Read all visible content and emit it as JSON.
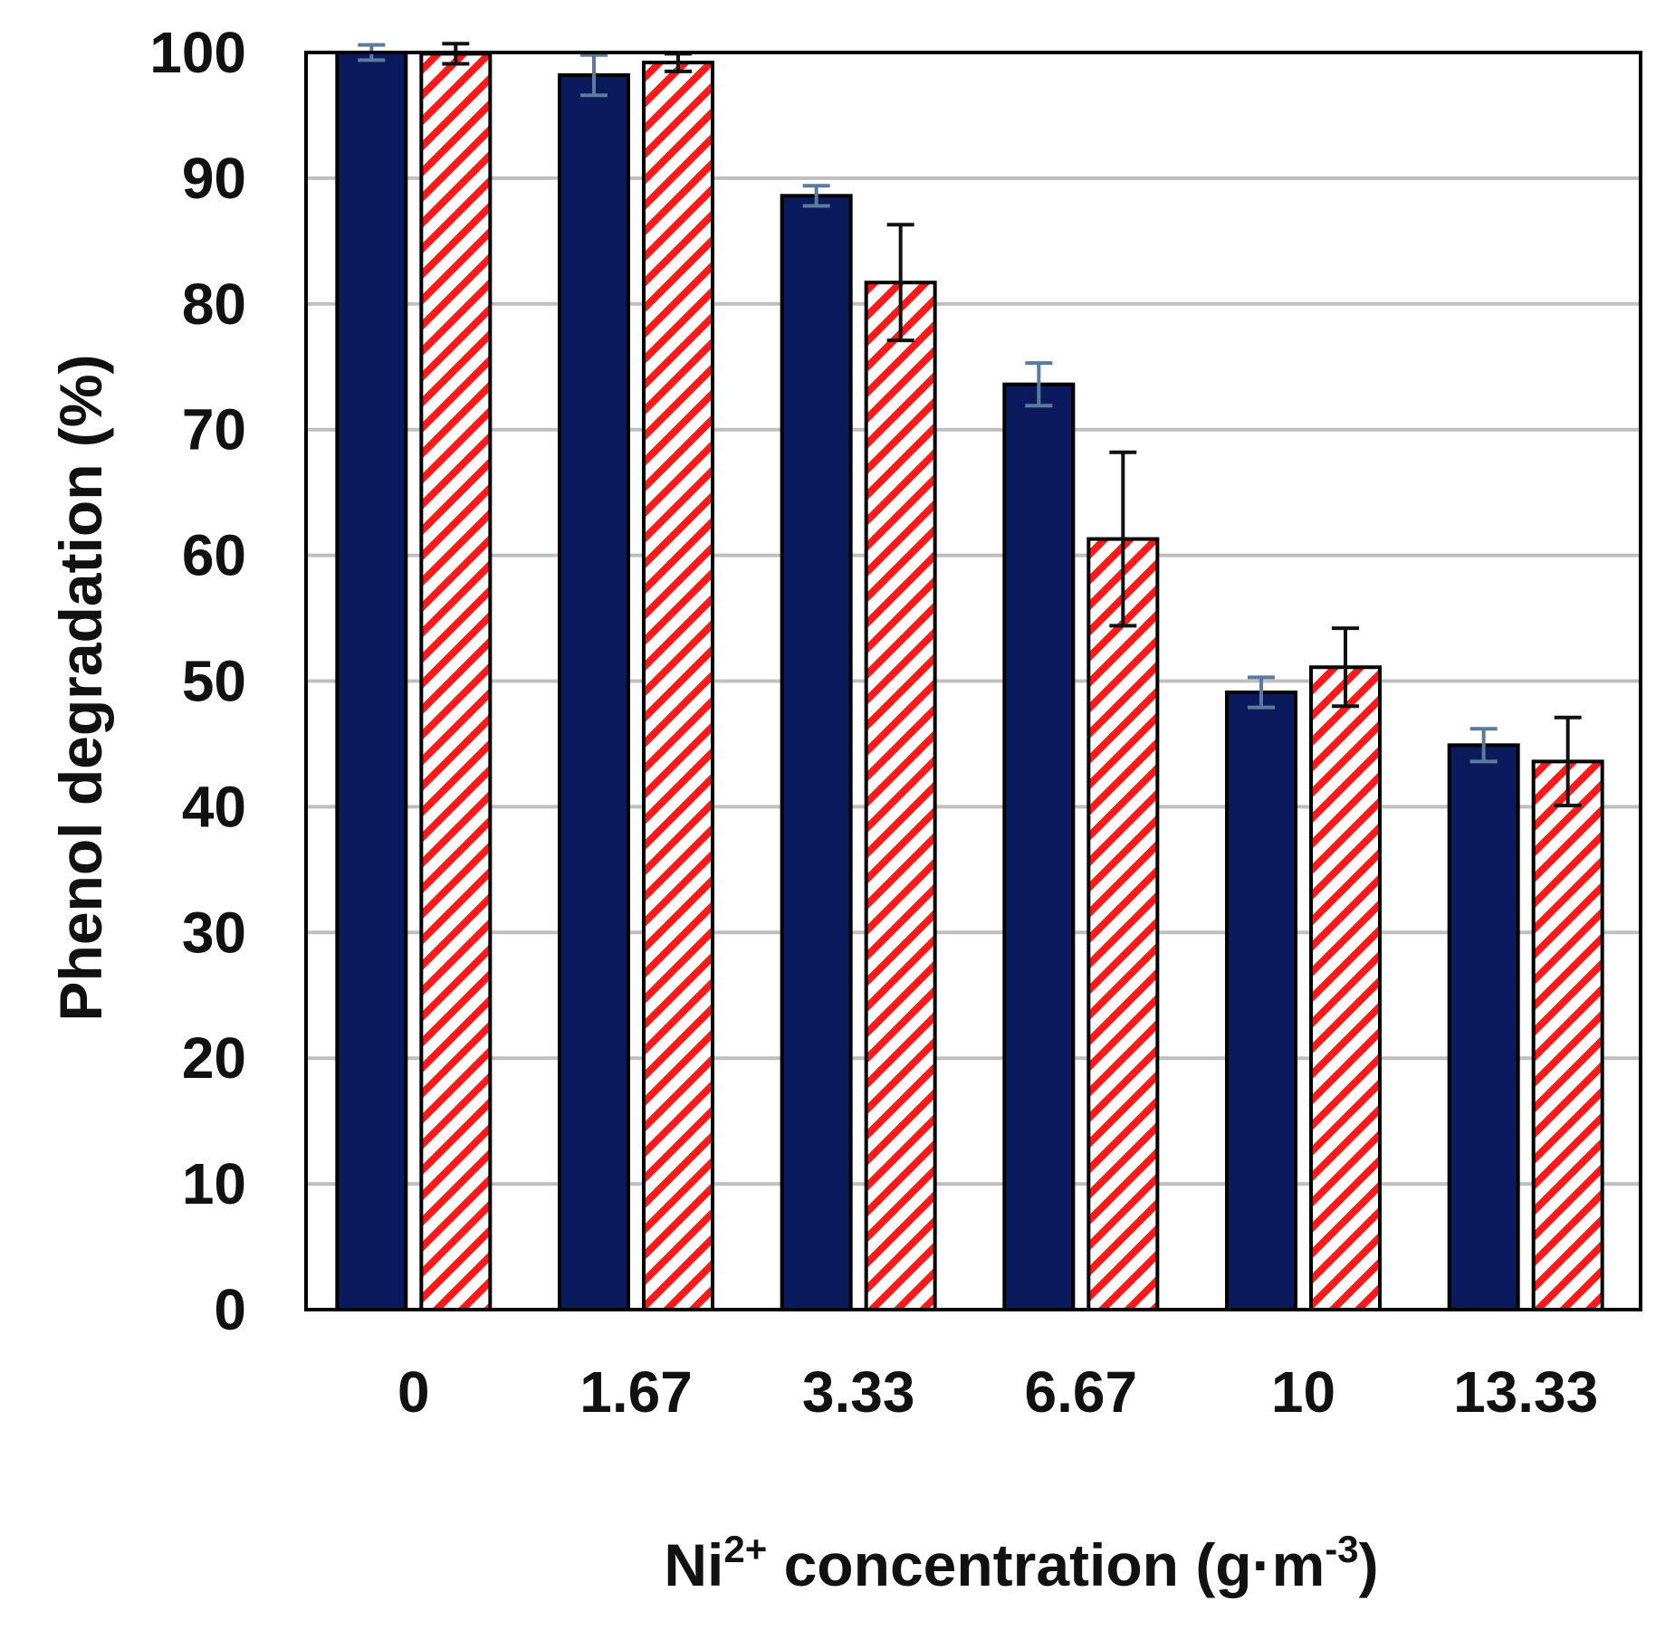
{
  "chart_data": {
    "type": "bar",
    "title": "",
    "categories": [
      "0",
      "1.67",
      "3.33",
      "6.67",
      "10",
      "13.33"
    ],
    "series": [
      {
        "color": "#0a1a5c",
        "fill": "solid",
        "values": [
          100,
          98.2,
          88.6,
          73.6,
          49.1,
          44.9
        ],
        "errors": [
          0.6,
          1.6,
          0.8,
          1.7,
          1.2,
          1.3
        ],
        "error_color": "#5b7a9e"
      },
      {
        "color": "#ff1a1a",
        "fill": "diagonal-hatch",
        "values": [
          99.9,
          99.2,
          81.7,
          61.3,
          51.1,
          43.6
        ],
        "errors": [
          0.8,
          0.7,
          4.6,
          6.9,
          3.1,
          3.5
        ],
        "error_color": "#111111"
      }
    ],
    "ylabel": "Phenol degradation (%)",
    "xlabel": {
      "base": "Ni",
      "base_sup": "2+",
      "middle": " concentration (g·m",
      "middle_sup": "-3",
      "end": ")"
    },
    "ylim": [
      0,
      100
    ],
    "yticks": [
      "0",
      "10",
      "20",
      "30",
      "40",
      "50",
      "60",
      "70",
      "80",
      "90",
      "100"
    ],
    "grid": "horizontal",
    "legend": "none"
  }
}
